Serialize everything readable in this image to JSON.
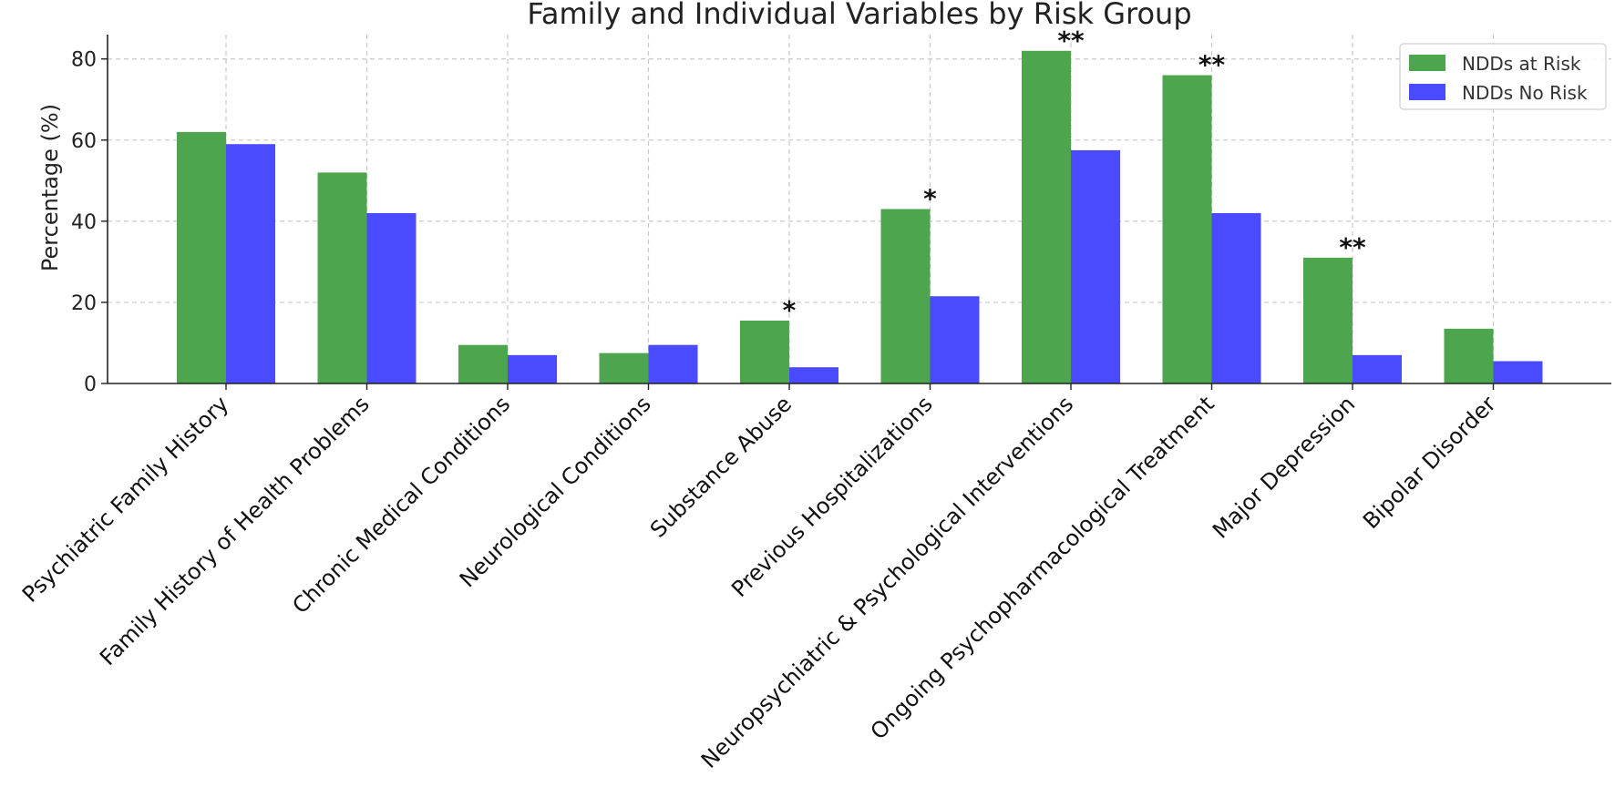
{
  "chart_data": {
    "type": "bar",
    "title": "Family and Individual Variables by Risk Group",
    "xlabel": "",
    "ylabel": "Percentage (%)",
    "ylim": [
      0,
      86
    ],
    "yticks": [
      0,
      20,
      40,
      60,
      80
    ],
    "grid": true,
    "legend_position": "top-right",
    "categories": [
      "Psychiatric Family History",
      "Family History of Health Problems",
      "Chronic Medical Conditions",
      "Neurological Conditions",
      "Substance Abuse",
      "Previous Hospitalizations",
      "Neuropsychiatric & Psychological Interventions",
      "Ongoing Psychopharmacological Treatment",
      "Major Depression",
      "Bipolar Disorder"
    ],
    "series": [
      {
        "name": "NDDs at Risk",
        "color": "#4da64d",
        "values": [
          62,
          52,
          9.5,
          7.5,
          15.5,
          43,
          82,
          76,
          31,
          13.5
        ]
      },
      {
        "name": "NDDs No Risk",
        "color": "#4a4aff",
        "values": [
          59,
          42,
          7,
          9.5,
          4,
          21.5,
          57.5,
          42,
          7,
          5.5
        ]
      }
    ],
    "annotations": [
      "",
      "",
      "",
      "",
      "*",
      "*",
      "**",
      "**",
      "**",
      ""
    ]
  }
}
